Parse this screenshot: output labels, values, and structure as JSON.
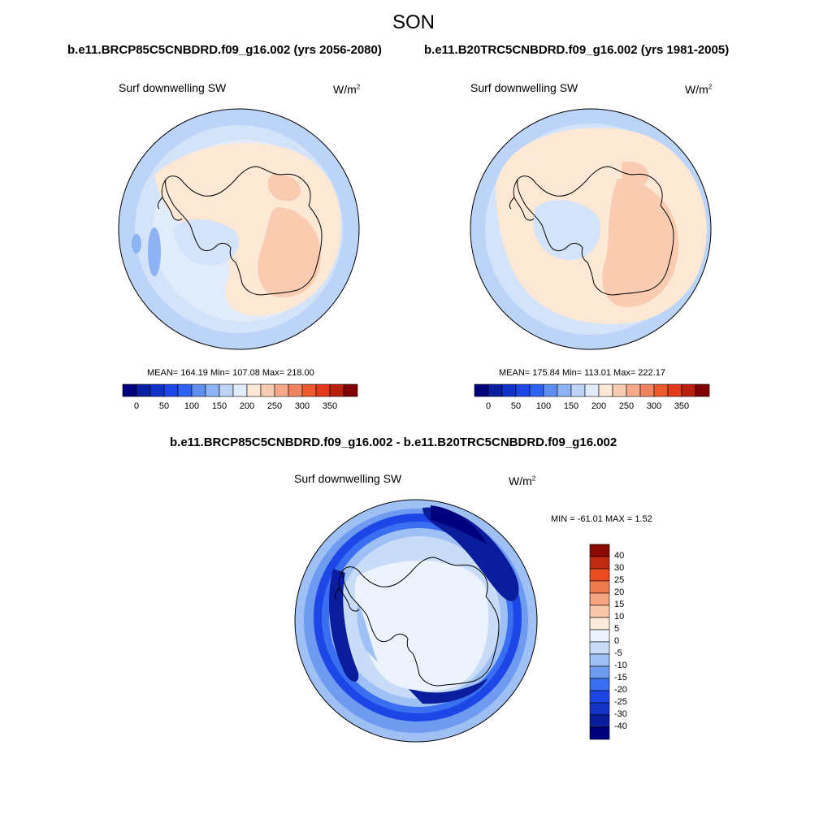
{
  "figure": {
    "title": "SON",
    "top_left_run": "b.e11.BRCP85C5CNBDRD.f09_g16.002 (yrs 2056-2080)",
    "top_right_run": "b.e11.B20TRC5CNBDRD.f09_g16.002 (yrs 1981-2005)",
    "diff_title": "b.e11.BRCP85C5CNBDRD.f09_g16.002 - b.e11.B20TRC5CNBDRD.f09_g16.002"
  },
  "panels": {
    "left": {
      "variable": "Surf downwelling SW",
      "units": "W/m",
      "units_sup": "2",
      "stats": "MEAN= 164.19  Min= 107.08  Max= 218.00"
    },
    "right": {
      "variable": "Surf downwelling SW",
      "units": "W/m",
      "units_sup": "2",
      "stats": "MEAN= 175.84  Min= 113.01  Max= 222.17"
    },
    "diff": {
      "variable": "Surf downwelling SW",
      "units": "W/m",
      "units_sup": "2",
      "stats": "MIN = -61.01 MAX =   1.52"
    }
  },
  "colorbars": {
    "abs": {
      "colors": [
        "#00007f",
        "#0b1fa3",
        "#1131c8",
        "#1c46e6",
        "#2f62f3",
        "#5e8ff0",
        "#8db3f5",
        "#bcd4f8",
        "#e0ecfb",
        "#fde7d5",
        "#f9ccb1",
        "#f5a98a",
        "#f0835f",
        "#ec5a2e",
        "#e03818",
        "#b8200e",
        "#800000"
      ],
      "labels": [
        "0",
        "50",
        "100",
        "150",
        "200",
        "250",
        "300",
        "350"
      ]
    },
    "diff": {
      "colors": [
        "#00007f",
        "#0a1d9c",
        "#1332c6",
        "#1c47e6",
        "#3a6ff2",
        "#6e9af0",
        "#9fc0f5",
        "#c8dcf8",
        "#edf3fc",
        "#fde9dc",
        "#f8c8a8",
        "#f4a47f",
        "#f07a50",
        "#ea4b20",
        "#c02a10",
        "#8a0a00"
      ],
      "labels": [
        "40",
        "30",
        "25",
        "20",
        "15",
        "10",
        "5",
        "0",
        "-5",
        "-10",
        "-15",
        "-20",
        "-25",
        "-30",
        "-40"
      ]
    }
  },
  "legend": {
    "abs_scale_min": 0,
    "abs_scale_max": 350
  }
}
